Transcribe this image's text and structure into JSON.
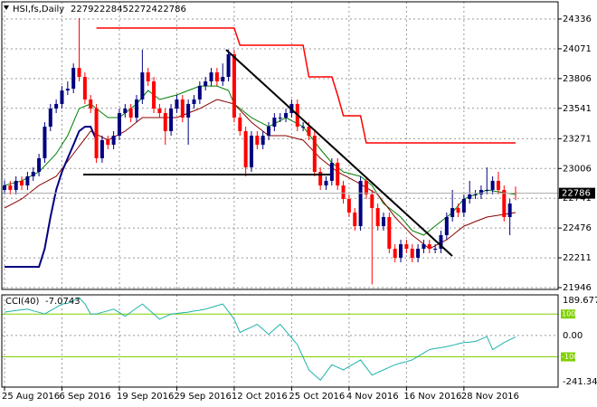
{
  "chart_data": {
    "type": "candlestick",
    "title": "HSI,fs,Daily",
    "categories": [
      "25 Aug 2016",
      null,
      null,
      null,
      null,
      null,
      null,
      null,
      null,
      null,
      "6 Sep 2016",
      null,
      null,
      null,
      null,
      null,
      null,
      null,
      null,
      null,
      "19 Sep 2016",
      null,
      null,
      null,
      null,
      null,
      null,
      null,
      null,
      null,
      "29 Sep 2016",
      null,
      null,
      null,
      null,
      null,
      null,
      null,
      null,
      null,
      "12 Oct 2016",
      null,
      null,
      null,
      null,
      null,
      null,
      null,
      null,
      null,
      "25 Oct 2016",
      null,
      null,
      null,
      null,
      null,
      null,
      null,
      null,
      null,
      "4 Nov 2016",
      null,
      null,
      null,
      null,
      null,
      null,
      null,
      null,
      null,
      "16 Nov 2016",
      null,
      null,
      null,
      null,
      null,
      null,
      null,
      null,
      null,
      "28 Nov 2016",
      null,
      null,
      null,
      null,
      null,
      null,
      null,
      null,
      null
    ],
    "ohlc": [
      [
        22815,
        22900,
        22775,
        22855
      ],
      [
        22855,
        22895,
        22775,
        22815
      ],
      [
        22815,
        22936,
        22775,
        22896
      ],
      [
        22896,
        22936,
        22815,
        22855
      ],
      [
        22855,
        22976,
        22815,
        22936
      ],
      [
        22936,
        23016,
        22896,
        22976
      ],
      [
        22976,
        23137,
        22936,
        23097
      ],
      [
        23097,
        23418,
        23057,
        23378
      ],
      [
        23378,
        23580,
        23338,
        23539
      ],
      [
        23539,
        23620,
        23499,
        23580
      ],
      [
        23580,
        23740,
        23539,
        23700
      ],
      [
        23700,
        23781,
        23660,
        23716
      ],
      [
        23716,
        23941,
        23676,
        23901
      ],
      [
        23901,
        24344,
        23781,
        23821
      ],
      [
        23821,
        23861,
        23580,
        23620
      ],
      [
        23620,
        23660,
        23499,
        23539
      ],
      [
        23539,
        23580,
        23057,
        23097
      ],
      [
        23097,
        23298,
        23057,
        23258
      ],
      [
        23258,
        23298,
        23177,
        23217
      ],
      [
        23217,
        23338,
        23177,
        23298
      ],
      [
        23298,
        23539,
        23258,
        23499
      ],
      [
        23499,
        23580,
        23459,
        23539
      ],
      [
        23539,
        23580,
        23418,
        23459
      ],
      [
        23459,
        23660,
        23418,
        23620
      ],
      [
        23620,
        24062,
        23580,
        23861
      ],
      [
        23861,
        23901,
        23740,
        23781
      ],
      [
        23781,
        23821,
        23499,
        23539
      ],
      [
        23539,
        23580,
        23459,
        23499
      ],
      [
        23499,
        23539,
        23217,
        23338
      ],
      [
        23338,
        23580,
        23298,
        23539
      ],
      [
        23539,
        23660,
        23499,
        23620
      ],
      [
        23620,
        23660,
        23418,
        23459
      ],
      [
        23459,
        23620,
        23217,
        23580
      ],
      [
        23580,
        23660,
        23539,
        23620
      ],
      [
        23620,
        23781,
        23580,
        23740
      ],
      [
        23740,
        23821,
        23700,
        23781
      ],
      [
        23781,
        23901,
        23740,
        23861
      ],
      [
        23861,
        23901,
        23740,
        23781
      ],
      [
        23781,
        23941,
        23740,
        23821
      ],
      [
        23821,
        24062,
        23781,
        24022
      ],
      [
        24022,
        24062,
        23418,
        23459
      ],
      [
        23459,
        23499,
        23298,
        23338
      ],
      [
        23338,
        23378,
        22936,
        23016
      ],
      [
        23016,
        23338,
        22976,
        23298
      ],
      [
        23298,
        23338,
        23177,
        23217
      ],
      [
        23217,
        23338,
        23177,
        23298
      ],
      [
        23298,
        23418,
        23258,
        23378
      ],
      [
        23378,
        23499,
        23338,
        23459
      ],
      [
        23459,
        23499,
        23418,
        23459
      ],
      [
        23459,
        23539,
        23418,
        23499
      ],
      [
        23499,
        23620,
        23459,
        23580
      ],
      [
        23580,
        23620,
        23338,
        23378
      ],
      [
        23378,
        23418,
        23338,
        23378
      ],
      [
        23378,
        23418,
        23258,
        23298
      ],
      [
        23298,
        23338,
        22936,
        22976
      ],
      [
        22976,
        23016,
        22815,
        22855
      ],
      [
        22855,
        22936,
        22815,
        22896
      ],
      [
        22896,
        23097,
        22855,
        23057
      ],
      [
        23057,
        23097,
        22815,
        22855
      ],
      [
        22855,
        22896,
        22694,
        22735
      ],
      [
        22735,
        22775,
        22574,
        22614
      ],
      [
        22614,
        22654,
        22453,
        22493
      ],
      [
        22493,
        22936,
        22453,
        22896
      ],
      [
        22896,
        22936,
        22735,
        22775
      ],
      [
        22775,
        22815,
        21975,
        22654
      ],
      [
        22654,
        22694,
        22453,
        22493
      ],
      [
        22493,
        22614,
        22453,
        22574
      ],
      [
        22574,
        22614,
        22252,
        22292
      ],
      [
        22292,
        22332,
        22171,
        22212
      ],
      [
        22212,
        22372,
        22171,
        22332
      ],
      [
        22332,
        22372,
        22252,
        22292
      ],
      [
        22292,
        22332,
        22171,
        22212
      ],
      [
        22212,
        22332,
        22171,
        22292
      ],
      [
        22292,
        22372,
        22252,
        22332
      ],
      [
        22332,
        22372,
        22252,
        22292
      ],
      [
        22292,
        22332,
        22252,
        22292
      ],
      [
        22292,
        22453,
        22252,
        22413
      ],
      [
        22413,
        22614,
        22372,
        22574
      ],
      [
        22574,
        22815,
        22534,
        22654
      ],
      [
        22654,
        22694,
        22574,
        22614
      ],
      [
        22614,
        22775,
        22574,
        22735
      ],
      [
        22735,
        22896,
        22694,
        22775
      ],
      [
        22775,
        22815,
        22735,
        22775
      ],
      [
        22775,
        22855,
        22735,
        22815
      ],
      [
        22815,
        23016,
        22775,
        22815
      ],
      [
        22815,
        22936,
        22775,
        22896
      ],
      [
        22896,
        22976,
        22775,
        22815
      ],
      [
        22815,
        22855,
        22534,
        22574
      ],
      [
        22574,
        22735,
        22413,
        22694
      ],
      [
        22792,
        22845,
        22724,
        22786
      ]
    ],
    "up_color": "#000080",
    "down_color": "#ff0000",
    "series": [
      {
        "color": "#008000",
        "width": 1,
        "values": [
          22855,
          22869,
          22882,
          22896,
          22923,
          22949,
          22976,
          23030,
          23083,
          23137,
          23218,
          23298,
          23419,
          23539,
          23560,
          23580,
          23539,
          23499,
          23459,
          23459,
          23459,
          23499,
          23540,
          23580,
          23640,
          23700,
          23660,
          23620,
          23633,
          23647,
          23660,
          23680,
          23700,
          23720,
          23740,
          23740,
          23740,
          23740,
          23720,
          23700,
          23580,
          23540,
          23499,
          23459,
          23432,
          23405,
          23378,
          23405,
          23432,
          23459,
          23432,
          23405,
          23378,
          23311,
          23244,
          23177,
          23117,
          23057,
          23017,
          22976,
          22963,
          22949,
          22936,
          22896,
          22855,
          22775,
          22694,
          22654,
          22614,
          22574,
          22514,
          22453,
          22433,
          22413,
          22453,
          22494,
          22534,
          22574,
          22614,
          22675,
          22735,
          22755,
          22775,
          22795,
          22815,
          22807,
          22799,
          22791,
          22783,
          22775
        ]
      },
      {
        "color": "#8b0000",
        "width": 1,
        "values": [
          22654,
          22681,
          22708,
          22735,
          22775,
          22815,
          22855,
          22882,
          22909,
          22936,
          23003,
          23070,
          23137,
          23204,
          23271,
          23338,
          23311,
          23285,
          23258,
          23285,
          23311,
          23338,
          23378,
          23419,
          23459,
          23459,
          23459,
          23459,
          23459,
          23459,
          23459,
          23479,
          23499,
          23519,
          23539,
          23566,
          23593,
          23620,
          23607,
          23593,
          23580,
          23526,
          23472,
          23418,
          23378,
          23338,
          23298,
          23298,
          23298,
          23298,
          23285,
          23271,
          23258,
          23204,
          23151,
          23097,
          23057,
          23016,
          22976,
          22949,
          22923,
          22896,
          22866,
          22836,
          22805,
          22775,
          22708,
          22641,
          22574,
          22520,
          22467,
          22413,
          22373,
          22332,
          22292,
          22319,
          22345,
          22372,
          22412,
          22453,
          22493,
          22513,
          22534,
          22554,
          22574,
          22582,
          22590,
          22598,
          22606,
          22614
        ]
      },
      {
        "color": "#000080",
        "width": 2,
        "values": [
          22131,
          22131,
          22131,
          22131,
          22131,
          22131,
          22131,
          22292,
          22574,
          22815,
          22976,
          23097,
          23217,
          23338,
          23378,
          23378,
          23258,
          null,
          null,
          null,
          null,
          null,
          null,
          null,
          null,
          null,
          null,
          null,
          null,
          null,
          null,
          null,
          null,
          null,
          null,
          null,
          null,
          null,
          null,
          null,
          null,
          null,
          null,
          null,
          null,
          null,
          null,
          null,
          null,
          null,
          null,
          null,
          null,
          null,
          null,
          null,
          null,
          null,
          null,
          null,
          null,
          null,
          null,
          null,
          null,
          null,
          null,
          null,
          null,
          null,
          null,
          null,
          null,
          null,
          null,
          null,
          null,
          null,
          null,
          null,
          null,
          null,
          null,
          null,
          null,
          null,
          null,
          null,
          null,
          null
        ]
      },
      {
        "color": "#ff0000",
        "width": 1.5,
        "values": [
          null,
          null,
          null,
          null,
          null,
          null,
          null,
          null,
          null,
          null,
          null,
          null,
          null,
          null,
          null,
          null,
          24256,
          24256,
          24256,
          24256,
          24256,
          24256,
          24256,
          24256,
          24256,
          24256,
          24256,
          24256,
          24256,
          24256,
          24256,
          24256,
          24256,
          24256,
          24256,
          24256,
          24256,
          24256,
          24256,
          24256,
          24256,
          24103,
          24103,
          24103,
          24103,
          24103,
          24103,
          24103,
          24103,
          24103,
          24103,
          24103,
          24103,
          23821,
          23821,
          23821,
          23821,
          23821,
          23660,
          23475,
          23475,
          23475,
          23475,
          23234,
          23234,
          23234,
          23234,
          23234,
          23234,
          23234,
          23234,
          23234,
          23234,
          23234,
          23234,
          23234,
          23234,
          23234,
          23234,
          23234,
          23234,
          23234,
          23234,
          23234,
          23234,
          23234,
          23234,
          23234,
          23234,
          23234
        ]
      }
    ],
    "ylim": [
      21930,
      24489
    ],
    "yticks": [
      24336,
      24071,
      23806,
      23541,
      23271,
      23006,
      22741,
      22476,
      22211,
      21946
    ],
    "grid": true,
    "cci": {
      "name": "CCI(40)",
      "color": "#20b2aa",
      "level_color": "#7fd000",
      "values": [
        109,
        113,
        116,
        120,
        123,
        115,
        108,
        100,
        116,
        131,
        147,
        150,
        163,
        177,
        147,
        100,
        100,
        108,
        115,
        123,
        107,
        90,
        109,
        128,
        147,
        123,
        100,
        76,
        88,
        100,
        103,
        106,
        109,
        114,
        118,
        123,
        131,
        139,
        147,
        112,
        76,
        14,
        27,
        39,
        52,
        29,
        5,
        29,
        52,
        20,
        -11,
        -43,
        -102,
        -161,
        -185,
        -209,
        -173,
        -137,
        -149,
        -161,
        -145,
        -130,
        -114,
        -150,
        -185,
        -173,
        -161,
        -149,
        -137,
        -129,
        -122,
        -114,
        -98,
        -82,
        -66,
        -61,
        -57,
        -52,
        -46,
        -39,
        -33,
        -31,
        -28,
        -17,
        -5,
        -66,
        -50,
        -33,
        -20,
        -7.0743
      ],
      "ylim": [
        -241.348,
        189.6779
      ],
      "yticks": [
        189.6779,
        {
          "value": 0,
          "label": "0.00"
        },
        -241.348
      ],
      "levels": [
        100,
        -100
      ]
    }
  }
}
